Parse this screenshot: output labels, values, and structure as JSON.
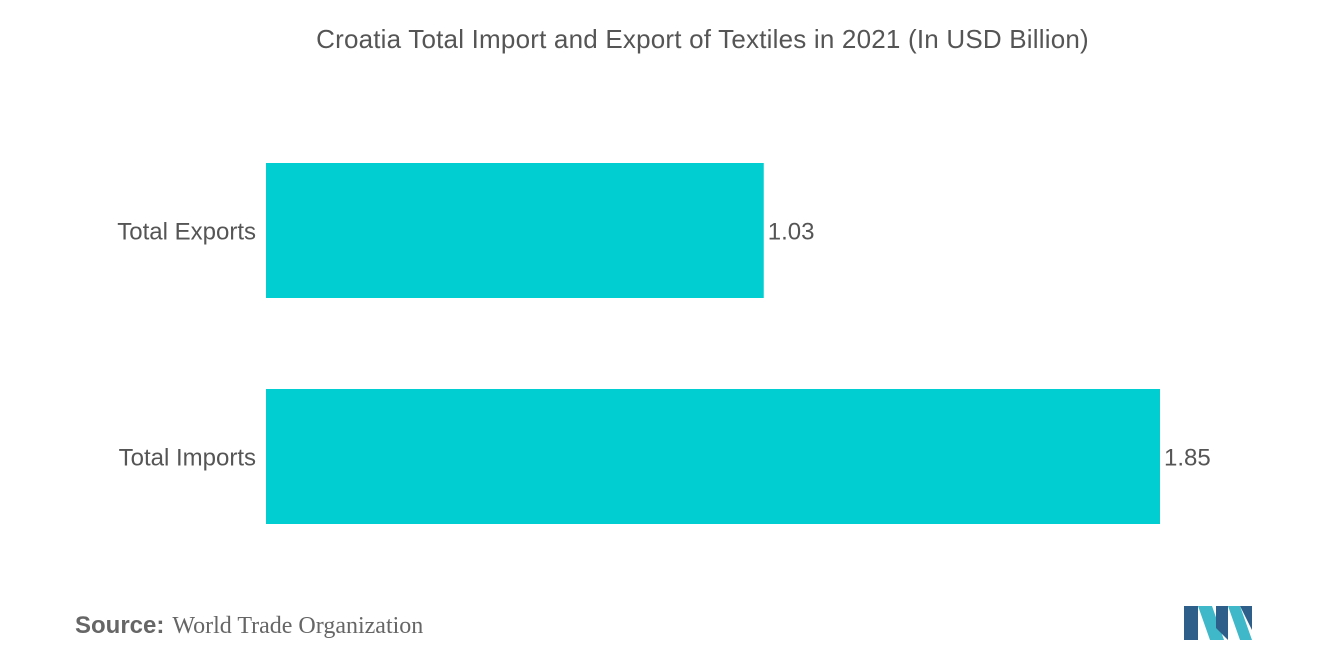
{
  "chart_data": {
    "type": "bar",
    "orientation": "horizontal",
    "title": "Croatia Total Import and Export of Textiles in 2021 (In USD Billion)",
    "categories": [
      "Total Exports",
      "Total Imports"
    ],
    "values": [
      1.03,
      1.85
    ],
    "data_labels": [
      "1.03",
      "1.85"
    ],
    "xlabel": "",
    "ylabel": "",
    "xlim": [
      0,
      1.85
    ],
    "grid": false,
    "legend": "none",
    "bar_color": "#00CED1"
  },
  "source": {
    "label": "Source:",
    "text": "World Trade Organization"
  },
  "colors": {
    "bar": "#00CED1",
    "text": "#555555",
    "logo_dark": "#2E5F8A",
    "logo_light": "#3FB8C9"
  },
  "logo": {
    "icon": "mordor-intelligence-logo-icon"
  }
}
